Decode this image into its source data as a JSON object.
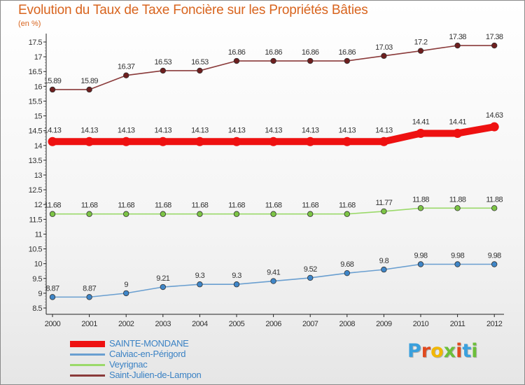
{
  "header": {
    "title": "Evolution du Taux de Taxe Foncière sur les Propriétés Bâties",
    "unit": "(en %)"
  },
  "logo": {
    "letters": [
      "P",
      "r",
      "o",
      "x",
      "i",
      "t",
      "i"
    ],
    "colors": [
      "#3aa0dd",
      "#e04a1f",
      "#f2b705",
      "#6cbf3a",
      "#e04a1f",
      "#3aa0dd",
      "#6cbf3a"
    ]
  },
  "chart_data": {
    "type": "line",
    "title": "Evolution du Taux de Taxe Foncière sur les Propriétés Bâties",
    "ylabel": "(en %)",
    "xlabel": "",
    "ylim": [
      8.5,
      17.5
    ],
    "yticks": [
      "8.5",
      "9",
      "9.5",
      "10",
      "10.5",
      "11",
      "11.5",
      "12",
      "12.5",
      "13",
      "13.5",
      "14",
      "14.5",
      "15",
      "15.5",
      "16",
      "16.5",
      "17",
      "17.5"
    ],
    "categories": [
      "2000",
      "2001",
      "2002",
      "2003",
      "2004",
      "2005",
      "2006",
      "2007",
      "2008",
      "2009",
      "2010",
      "2011",
      "2012"
    ],
    "grid": false,
    "series": [
      {
        "name": "SAINTE-MONDANE",
        "color": "#ee1111",
        "dot_color": "#ee1111",
        "emphasis": true,
        "values": [
          14.13,
          14.13,
          14.13,
          14.13,
          14.13,
          14.13,
          14.13,
          14.13,
          14.13,
          14.13,
          14.41,
          14.41,
          14.63
        ],
        "labels": [
          "14.13",
          "14.13",
          "14.13",
          "14.13",
          "14.13",
          "14.13",
          "14.13",
          "14.13",
          "14.13",
          "14.13",
          "14.41",
          "14.41",
          "14.63"
        ]
      },
      {
        "name": "Calviac-en-Périgord",
        "color": "#6a9fd0",
        "dot_color": "#3f86c8",
        "emphasis": false,
        "values": [
          8.87,
          8.87,
          9,
          9.21,
          9.3,
          9.3,
          9.41,
          9.52,
          9.68,
          9.8,
          9.98,
          9.98,
          9.98
        ],
        "labels": [
          "8.87",
          "8.87",
          "9",
          "9.21",
          "9.3",
          "9.3",
          "9.41",
          "9.52",
          "9.68",
          "9.8",
          "9.98",
          "9.98",
          "9.98"
        ]
      },
      {
        "name": "Veyrignac",
        "color": "#9bd96a",
        "dot_color": "#7cc445",
        "emphasis": false,
        "values": [
          11.68,
          11.68,
          11.68,
          11.68,
          11.68,
          11.68,
          11.68,
          11.68,
          11.68,
          11.77,
          11.88,
          11.88,
          11.88
        ],
        "labels": [
          "11.68",
          "11.68",
          "11.68",
          "11.68",
          "11.68",
          "11.68",
          "11.68",
          "11.68",
          "11.68",
          "11.77",
          "11.88",
          "11.88",
          "11.88"
        ]
      },
      {
        "name": "Saint-Julien-de-Lampon",
        "color": "#8a3a3a",
        "dot_color": "#6e1f1f",
        "emphasis": false,
        "values": [
          15.89,
          15.89,
          16.37,
          16.53,
          16.53,
          16.86,
          16.86,
          16.86,
          16.86,
          17.03,
          17.2,
          17.38,
          17.38
        ],
        "labels": [
          "15.89",
          "15.89",
          "16.37",
          "16.53",
          "16.53",
          "16.86",
          "16.86",
          "16.86",
          "16.86",
          "17.03",
          "17.2",
          "17.38",
          "17.38"
        ]
      }
    ],
    "legend_position": "bottom-left"
  }
}
